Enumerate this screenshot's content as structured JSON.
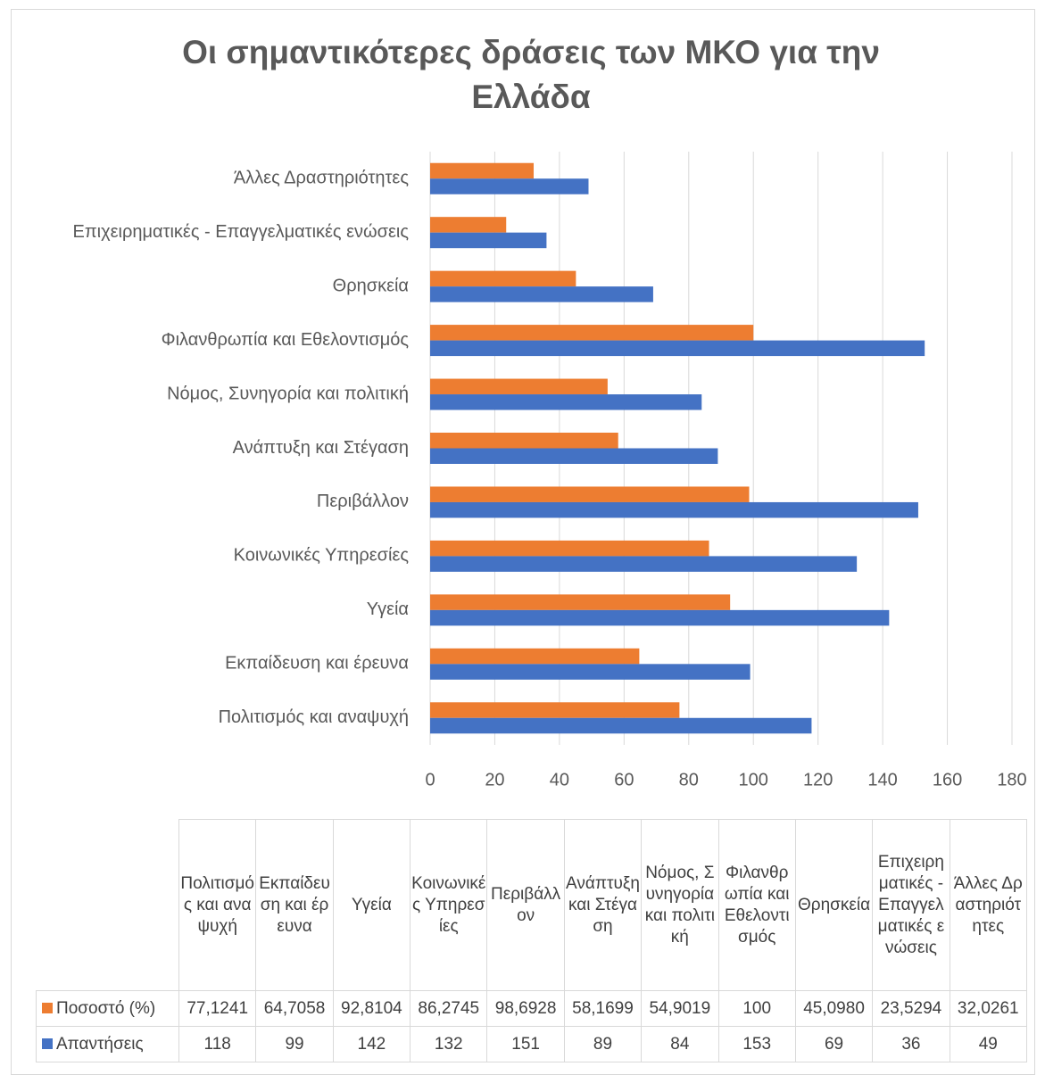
{
  "chart_data": {
    "type": "bar",
    "orientation": "horizontal",
    "title": "Οι σημαντικότερες δράσεις των ΜΚΟ για την Ελλάδα",
    "categories": [
      "Πολιτισμός και αναψυχή",
      "Εκπαίδευση και έρευνα",
      "Υγεία",
      "Κοινωνικές Υπηρεσίες",
      "Περιβάλλον",
      "Ανάπτυξη και Στέγαση",
      "Νόμος, Συνηγορία και πολιτική",
      "Φιλανθρωπία και Εθελοντισμός",
      "Θρησκεία",
      "Επιχειρηματικές - Επαγγελματικές ενώσεις",
      "Άλλες Δραστηριότητες"
    ],
    "series": [
      {
        "name": "Ποσοστό (%)",
        "color": "#ED7D31",
        "values": [
          77.1241,
          64.7058,
          92.8104,
          86.2745,
          98.6928,
          58.1699,
          54.9019,
          100,
          45.098,
          23.5294,
          32.0261
        ],
        "value_labels": [
          "77,1241",
          "64,7058",
          "92,8104",
          "86,2745",
          "98,6928",
          "58,1699",
          "54,9019",
          "100",
          "45,0980",
          "23,5294",
          "32,0261"
        ]
      },
      {
        "name": "Απαντήσεις",
        "color": "#4472C4",
        "values": [
          118,
          99,
          142,
          132,
          151,
          89,
          84,
          153,
          69,
          36,
          49
        ]
      }
    ],
    "xlim": [
      0,
      180
    ],
    "xticks": [
      0,
      20,
      40,
      60,
      80,
      100,
      120,
      140,
      160,
      180
    ],
    "grid": true,
    "data_table": true
  }
}
